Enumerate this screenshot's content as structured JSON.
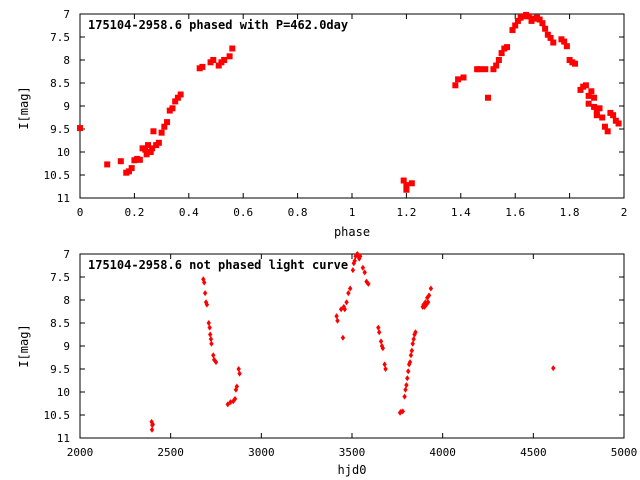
{
  "chart_data": [
    {
      "type": "scatter",
      "title": "175104-2958.6 phased with P=462.0day",
      "xlabel": "phase",
      "ylabel": "I[mag]",
      "xlim": [
        0,
        2
      ],
      "ylim": [
        11,
        7
      ],
      "y_inverted": true,
      "grid": false,
      "marker_color": "#ff0000",
      "xticks": [
        "0",
        "0.2",
        "0.4",
        "0.6",
        "0.8",
        "1",
        "1.2",
        "1.4",
        "1.6",
        "1.8",
        "2"
      ],
      "yticks": [
        "7",
        "7.5",
        "8",
        "8.5",
        "9",
        "9.5",
        "10",
        "10.5",
        "11"
      ],
      "points": [
        [
          0.0,
          9.48
        ],
        [
          0.1,
          10.27
        ],
        [
          0.15,
          10.2
        ],
        [
          0.17,
          10.45
        ],
        [
          0.18,
          10.42
        ],
        [
          0.19,
          10.35
        ],
        [
          0.2,
          10.18
        ],
        [
          0.21,
          10.15
        ],
        [
          0.22,
          10.17
        ],
        [
          0.23,
          9.92
        ],
        [
          0.24,
          9.95
        ],
        [
          0.245,
          10.05
        ],
        [
          0.25,
          9.85
        ],
        [
          0.26,
          10.0
        ],
        [
          0.265,
          9.92
        ],
        [
          0.27,
          9.55
        ],
        [
          0.28,
          9.85
        ],
        [
          0.29,
          9.8
        ],
        [
          0.3,
          9.58
        ],
        [
          0.31,
          9.45
        ],
        [
          0.32,
          9.35
        ],
        [
          0.33,
          9.1
        ],
        [
          0.34,
          9.05
        ],
        [
          0.35,
          8.9
        ],
        [
          0.36,
          8.82
        ],
        [
          0.37,
          8.75
        ],
        [
          0.44,
          8.18
        ],
        [
          0.45,
          8.15
        ],
        [
          0.48,
          8.05
        ],
        [
          0.49,
          8.0
        ],
        [
          0.51,
          8.12
        ],
        [
          0.52,
          8.05
        ],
        [
          0.53,
          8.0
        ],
        [
          0.55,
          7.92
        ],
        [
          0.56,
          7.75
        ],
        [
          1.19,
          10.62
        ],
        [
          1.2,
          10.72
        ],
        [
          1.2,
          10.82
        ],
        [
          1.22,
          10.68
        ],
        [
          1.38,
          8.55
        ],
        [
          1.39,
          8.42
        ],
        [
          1.41,
          8.38
        ],
        [
          1.46,
          8.2
        ],
        [
          1.47,
          8.2
        ],
        [
          1.49,
          8.2
        ],
        [
          1.5,
          8.82
        ],
        [
          1.52,
          8.2
        ],
        [
          1.53,
          8.12
        ],
        [
          1.54,
          8.0
        ],
        [
          1.55,
          7.85
        ],
        [
          1.56,
          7.75
        ],
        [
          1.57,
          7.72
        ],
        [
          1.59,
          7.35
        ],
        [
          1.6,
          7.25
        ],
        [
          1.61,
          7.15
        ],
        [
          1.62,
          7.08
        ],
        [
          1.63,
          7.05
        ],
        [
          1.64,
          7.02
        ],
        [
          1.65,
          7.05
        ],
        [
          1.66,
          7.15
        ],
        [
          1.67,
          7.1
        ],
        [
          1.68,
          7.08
        ],
        [
          1.69,
          7.12
        ],
        [
          1.7,
          7.2
        ],
        [
          1.71,
          7.32
        ],
        [
          1.72,
          7.45
        ],
        [
          1.73,
          7.52
        ],
        [
          1.74,
          7.62
        ],
        [
          1.77,
          7.55
        ],
        [
          1.78,
          7.6
        ],
        [
          1.79,
          7.7
        ],
        [
          1.8,
          8.0
        ],
        [
          1.81,
          8.05
        ],
        [
          1.82,
          8.08
        ],
        [
          1.84,
          8.65
        ],
        [
          1.85,
          8.58
        ],
        [
          1.86,
          8.55
        ],
        [
          1.87,
          8.95
        ],
        [
          1.87,
          8.78
        ],
        [
          1.88,
          8.68
        ],
        [
          1.89,
          8.82
        ],
        [
          1.89,
          9.02
        ],
        [
          1.9,
          9.12
        ],
        [
          1.9,
          9.2
        ],
        [
          1.91,
          9.05
        ],
        [
          1.92,
          9.25
        ],
        [
          1.93,
          9.45
        ],
        [
          1.94,
          9.55
        ],
        [
          1.95,
          9.15
        ],
        [
          1.96,
          9.2
        ],
        [
          1.97,
          9.32
        ],
        [
          1.98,
          9.38
        ]
      ]
    },
    {
      "type": "scatter",
      "title": "175104-2958.6 not phased light curve",
      "xlabel": "hjd0",
      "ylabel": "I[mag]",
      "xlim": [
        2000,
        5000
      ],
      "ylim": [
        11,
        7
      ],
      "y_inverted": true,
      "grid": false,
      "marker_color": "#ff0000",
      "xticks": [
        "2000",
        "2500",
        "3000",
        "3500",
        "4000",
        "4500",
        "5000"
      ],
      "yticks": [
        "7",
        "7.5",
        "8",
        "8.5",
        "9",
        "9.5",
        "10",
        "10.5",
        "11"
      ],
      "points": [
        [
          2395,
          10.65
        ],
        [
          2397,
          10.82
        ],
        [
          2399,
          10.72
        ],
        [
          2401,
          10.7
        ],
        [
          2680,
          7.55
        ],
        [
          2685,
          7.62
        ],
        [
          2690,
          7.85
        ],
        [
          2695,
          8.05
        ],
        [
          2700,
          8.1
        ],
        [
          2710,
          8.5
        ],
        [
          2715,
          8.6
        ],
        [
          2718,
          8.75
        ],
        [
          2722,
          8.85
        ],
        [
          2725,
          8.95
        ],
        [
          2735,
          9.2
        ],
        [
          2740,
          9.3
        ],
        [
          2750,
          9.35
        ],
        [
          2815,
          10.27
        ],
        [
          2830,
          10.22
        ],
        [
          2845,
          10.2
        ],
        [
          2855,
          10.15
        ],
        [
          2860,
          9.95
        ],
        [
          2865,
          9.88
        ],
        [
          2875,
          9.5
        ],
        [
          2880,
          9.6
        ],
        [
          3415,
          8.35
        ],
        [
          3420,
          8.45
        ],
        [
          3440,
          8.2
        ],
        [
          3450,
          8.82
        ],
        [
          3455,
          8.15
        ],
        [
          3460,
          8.2
        ],
        [
          3470,
          8.05
        ],
        [
          3480,
          7.85
        ],
        [
          3490,
          7.75
        ],
        [
          3505,
          7.35
        ],
        [
          3510,
          7.2
        ],
        [
          3515,
          7.15
        ],
        [
          3520,
          7.05
        ],
        [
          3525,
          7.02
        ],
        [
          3530,
          7.0
        ],
        [
          3535,
          7.05
        ],
        [
          3540,
          7.1
        ],
        [
          3545,
          7.05
        ],
        [
          3560,
          7.3
        ],
        [
          3570,
          7.4
        ],
        [
          3580,
          7.6
        ],
        [
          3590,
          7.65
        ],
        [
          3645,
          8.6
        ],
        [
          3650,
          8.7
        ],
        [
          3660,
          8.9
        ],
        [
          3665,
          9.0
        ],
        [
          3670,
          9.05
        ],
        [
          3680,
          9.4
        ],
        [
          3685,
          9.5
        ],
        [
          3765,
          10.45
        ],
        [
          3770,
          10.43
        ],
        [
          3780,
          10.42
        ],
        [
          3790,
          10.1
        ],
        [
          3795,
          9.95
        ],
        [
          3800,
          9.85
        ],
        [
          3805,
          9.7
        ],
        [
          3810,
          9.55
        ],
        [
          3815,
          9.4
        ],
        [
          3820,
          9.35
        ],
        [
          3825,
          9.2
        ],
        [
          3830,
          9.1
        ],
        [
          3835,
          8.95
        ],
        [
          3840,
          8.85
        ],
        [
          3845,
          8.75
        ],
        [
          3850,
          8.7
        ],
        [
          3890,
          8.15
        ],
        [
          3895,
          8.1
        ],
        [
          3900,
          8.15
        ],
        [
          3905,
          8.05
        ],
        [
          3910,
          8.1
        ],
        [
          3915,
          7.95
        ],
        [
          3920,
          8.05
        ],
        [
          3925,
          7.9
        ],
        [
          3935,
          7.75
        ],
        [
          4610,
          9.48
        ]
      ]
    }
  ]
}
